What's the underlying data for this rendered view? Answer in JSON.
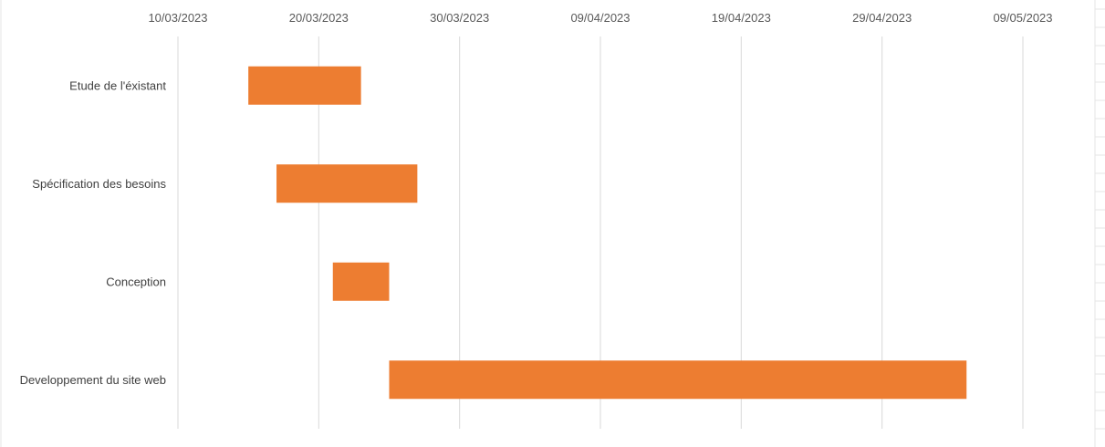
{
  "chart_data": {
    "type": "bar",
    "orientation": "horizontal",
    "title": "",
    "xlabel": "",
    "ylabel": "",
    "x_axis_position": "top",
    "x_tick_labels": [
      "10/03/2023",
      "20/03/2023",
      "30/03/2023",
      "09/04/2023",
      "19/04/2023",
      "29/04/2023",
      "09/05/2023"
    ],
    "xlim": [
      "2023-03-10",
      "2023-05-09"
    ],
    "grid": "vertical",
    "legend": "none",
    "bar_color": "#ED7D31",
    "series": [
      {
        "tasks": [
          {
            "label": "Etude de l'éxistant",
            "start": "2023-03-15",
            "end": "2023-03-23"
          },
          {
            "label": "Spécification des besoins",
            "start": "2023-03-17",
            "end": "2023-03-27"
          },
          {
            "label": "Conception",
            "start": "2023-03-21",
            "end": "2023-03-25"
          },
          {
            "label": "Developpement du site web",
            "start": "2023-03-25",
            "end": "2023-05-05"
          }
        ]
      }
    ]
  }
}
